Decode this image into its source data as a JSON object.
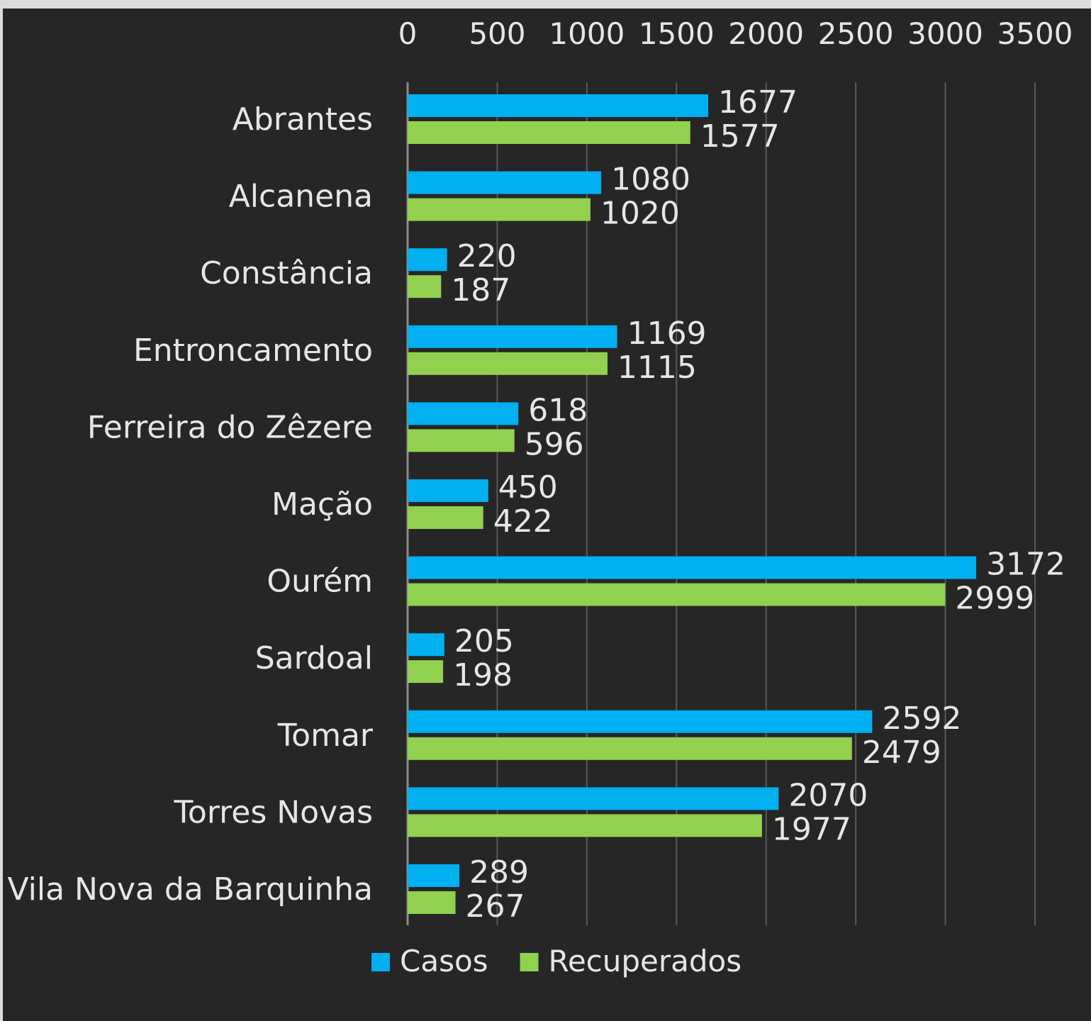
{
  "chart_data": {
    "type": "bar",
    "orientation": "horizontal",
    "categories": [
      "Abrantes",
      "Alcanena",
      "Constância",
      "Entroncamento",
      "Ferreira do Zêzere",
      "Mação",
      "Ourém",
      "Sardoal",
      "Tomar",
      "Torres Novas",
      "Vila Nova da Barquinha"
    ],
    "series": [
      {
        "name": "Casos",
        "color": "#00b0f0",
        "values": [
          1677,
          1080,
          220,
          1169,
          618,
          450,
          3172,
          205,
          2592,
          2070,
          289
        ]
      },
      {
        "name": "Recuperados",
        "color": "#92d050",
        "values": [
          1577,
          1020,
          187,
          1115,
          596,
          422,
          2999,
          198,
          2479,
          1977,
          267
        ]
      }
    ],
    "x_ticks": [
      "0",
      "500",
      "1000",
      "1500",
      "2000",
      "2500",
      "3000",
      "3500"
    ],
    "xlim": [
      0,
      3500
    ],
    "axis_position": "top",
    "grid": true,
    "data_labels": true,
    "legend_position": "bottom",
    "title": "",
    "xlabel": "",
    "ylabel": ""
  }
}
